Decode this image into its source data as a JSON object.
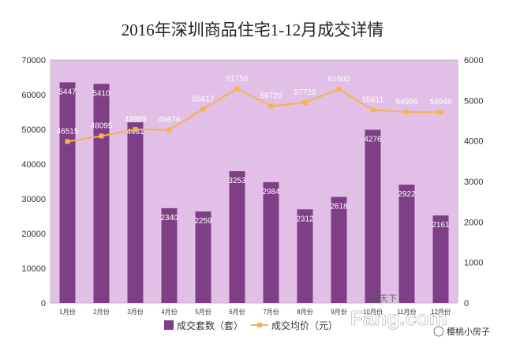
{
  "chart_data": {
    "type": "bar",
    "title": "2016年深圳商品住宅1-12月成交详情",
    "categories": [
      "1月份",
      "2月份",
      "3月份",
      "4月份",
      "5月份",
      "6月份",
      "7月份",
      "8月份",
      "9月份",
      "10月份",
      "11月份",
      "12月份"
    ],
    "series": [
      {
        "name": "成交套数（套）",
        "type": "bar",
        "axis": "right",
        "values": [
          5447,
          5410,
          4461,
          2340,
          2259,
          3253,
          2984,
          2312,
          2618,
          4276,
          2922,
          2161
        ],
        "labels": [
          "5447",
          "5410",
          "4461",
          "2340",
          "2259",
          "3253",
          "2984",
          "2312",
          "2618",
          "4276",
          "2922",
          "2161"
        ],
        "color": "#7e3f86"
      },
      {
        "name": "成交均价（元）",
        "type": "line",
        "axis": "left",
        "values": [
          46515,
          48095,
          49989,
          49876,
          55817,
          61756,
          56720,
          57728,
          61600,
          55611,
          54986,
          54946
        ],
        "labels": [
          "46515",
          "48095",
          "49989",
          "49876",
          "55817",
          "61756",
          "56720",
          "57728",
          "61600",
          "55611",
          "54986",
          "54946"
        ],
        "color": "#f2b64c"
      }
    ],
    "y_left": {
      "min": 0,
      "max": 70000,
      "ticks": [
        "0",
        "10000",
        "20000",
        "30000",
        "40000",
        "50000",
        "60000",
        "70000"
      ]
    },
    "y_right": {
      "min": 0,
      "max": 6000,
      "ticks": [
        "0",
        "1000",
        "2000",
        "3000",
        "4000",
        "5000",
        "6000"
      ]
    },
    "grid": false,
    "legend_position": "bottom",
    "plot_background": "#e1bfe6"
  },
  "watermark": {
    "site": "房天下",
    "logo": "Fang.com",
    "account": "樱桃小房子"
  }
}
